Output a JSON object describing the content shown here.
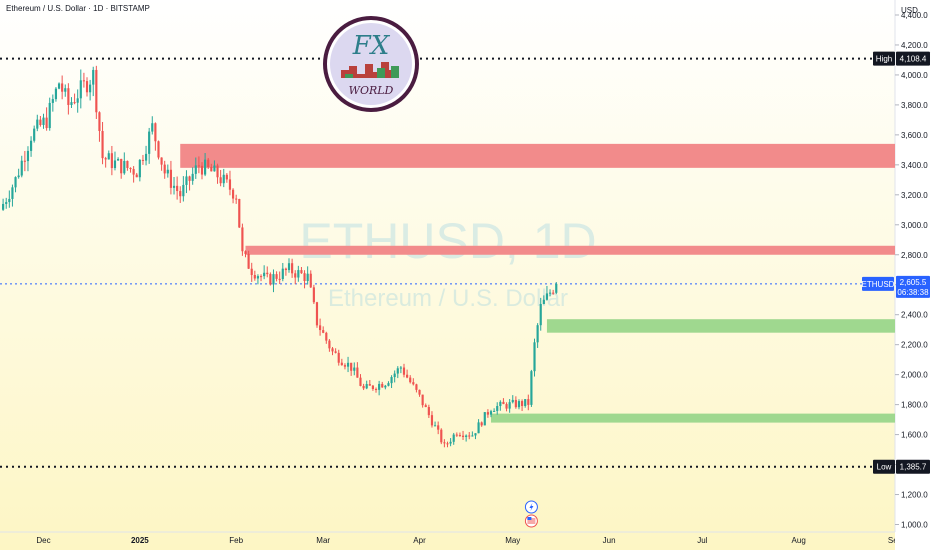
{
  "header": {
    "symbol_line": "Ethereum / U.S. Dollar · 1D · BITSTAMP"
  },
  "watermark": {
    "ticker": "ETHUSD, 1D",
    "name": "Ethereum / U.S. Dollar"
  },
  "colors": {
    "up": "#26a69a",
    "down": "#ef5350",
    "resistance_zone": "#f28b8b",
    "support_zone": "#9fd88f",
    "background_top": "#ffffff",
    "background_bottom": "#fdf6c4",
    "last_price_line": "#2962ff",
    "level_line": "#131722"
  },
  "chart_data": {
    "type": "candlestick",
    "title": "Ethereum / U.S. Dollar · 1D · BITSTAMP",
    "y_unit": "USD",
    "ylim": [
      950,
      4500
    ],
    "y_ticks": [
      1000,
      1200,
      1400,
      1600,
      1800,
      2000,
      2200,
      2400,
      2600,
      2800,
      3000,
      3200,
      3400,
      3600,
      3800,
      4000,
      4200,
      4400
    ],
    "y_tick_labels": [
      "1,000.0",
      "1,200.0",
      "1,400.0",
      "1,600.0",
      "1,800.0",
      "2,000.0",
      "2,200.0",
      "2,400.0",
      "2,600.0",
      "2,800.0",
      "3,000.0",
      "3,200.0",
      "3,400.0",
      "3,600.0",
      "3,800.0",
      "4,000.0",
      "4,200.0",
      "4,400.0"
    ],
    "x_range": [
      "2024-11-17",
      "2025-09-01"
    ],
    "x_ticks": [
      {
        "date": "2024-12-01",
        "label": "Dec"
      },
      {
        "date": "2025-01-01",
        "label": "2025"
      },
      {
        "date": "2025-02-01",
        "label": "Feb"
      },
      {
        "date": "2025-03-01",
        "label": "Mar"
      },
      {
        "date": "2025-04-01",
        "label": "Apr"
      },
      {
        "date": "2025-05-01",
        "label": "May"
      },
      {
        "date": "2025-06-01",
        "label": "Jun"
      },
      {
        "date": "2025-07-01",
        "label": "Jul"
      },
      {
        "date": "2025-08-01",
        "label": "Aug"
      },
      {
        "date": "2025-09-01",
        "label": "Sep"
      }
    ],
    "close_path": [
      [
        "2024-11-17",
        3100
      ],
      [
        "2024-11-22",
        3300
      ],
      [
        "2024-11-27",
        3600
      ],
      [
        "2024-12-02",
        3700
      ],
      [
        "2024-12-06",
        3950
      ],
      [
        "2024-12-09",
        3800
      ],
      [
        "2024-12-13",
        3900
      ],
      [
        "2024-12-17",
        4000
      ],
      [
        "2024-12-20",
        3450
      ],
      [
        "2024-12-25",
        3400
      ],
      [
        "2024-12-31",
        3360
      ],
      [
        "2025-01-05",
        3650
      ],
      [
        "2025-01-09",
        3350
      ],
      [
        "2025-01-14",
        3200
      ],
      [
        "2025-01-20",
        3400
      ],
      [
        "2025-01-26",
        3330
      ],
      [
        "2025-02-01",
        3200
      ],
      [
        "2025-02-03",
        2800
      ],
      [
        "2025-02-06",
        2700
      ],
      [
        "2025-02-11",
        2630
      ],
      [
        "2025-02-18",
        2700
      ],
      [
        "2025-02-24",
        2650
      ],
      [
        "2025-02-27",
        2350
      ],
      [
        "2025-03-04",
        2150
      ],
      [
        "2025-03-10",
        2050
      ],
      [
        "2025-03-14",
        1900
      ],
      [
        "2025-03-21",
        1950
      ],
      [
        "2025-03-26",
        2050
      ],
      [
        "2025-04-01",
        1850
      ],
      [
        "2025-04-06",
        1650
      ],
      [
        "2025-04-09",
        1520
      ],
      [
        "2025-04-13",
        1620
      ],
      [
        "2025-04-18",
        1600
      ],
      [
        "2025-04-24",
        1780
      ],
      [
        "2025-04-30",
        1800
      ],
      [
        "2025-05-06",
        1810
      ],
      [
        "2025-05-08",
        2200
      ],
      [
        "2025-05-10",
        2450
      ],
      [
        "2025-05-13",
        2550
      ],
      [
        "2025-05-15",
        2605.5
      ]
    ],
    "horizontal_levels": [
      {
        "label": "High",
        "value": 4108.4,
        "value_label": "4,108.4"
      },
      {
        "label": "Low",
        "value": 1385.7,
        "value_label": "1,385.7"
      }
    ],
    "last_price": {
      "symbol": "ETHUSD",
      "value": 2605.5,
      "value_label": "2,605.5",
      "countdown": "06:38:38"
    },
    "zones": [
      {
        "kind": "resistance",
        "from": 3380,
        "to": 3540,
        "start": "2025-01-14"
      },
      {
        "kind": "resistance",
        "from": 2800,
        "to": 2860,
        "start": "2025-02-04"
      },
      {
        "kind": "support",
        "from": 2280,
        "to": 2370,
        "start": "2025-05-12"
      },
      {
        "kind": "support",
        "from": 1680,
        "to": 1740,
        "start": "2025-04-24"
      }
    ],
    "markers": [
      {
        "date": "2025-05-07",
        "icon": "lightning-icon"
      },
      {
        "date": "2025-05-07",
        "icon": "us-flag-icon"
      }
    ]
  }
}
